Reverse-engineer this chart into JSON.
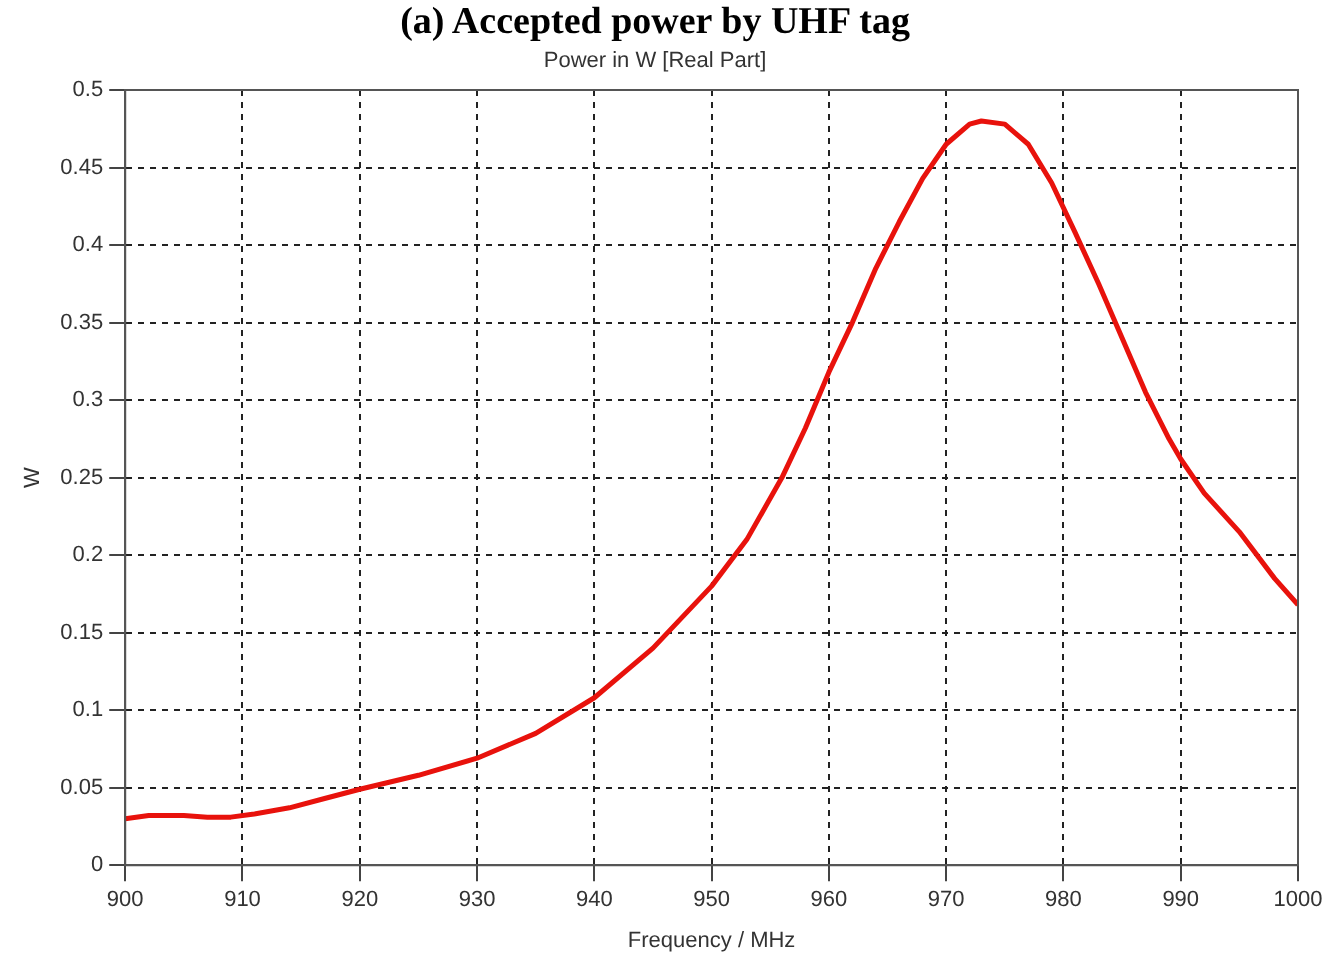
{
  "chart_data": {
    "type": "line",
    "title": "(a) Accepted power by UHF tag",
    "subtitle": "Power in W [Real Part]",
    "xlabel": "Frequency / MHz",
    "ylabel": "W",
    "x": [
      900,
      902,
      905,
      907,
      909,
      911,
      914,
      917,
      920,
      925,
      930,
      935,
      940,
      945,
      950,
      953,
      956,
      958,
      960,
      962,
      964,
      966,
      968,
      970,
      972,
      973,
      975,
      977,
      979,
      981,
      983,
      985,
      987,
      989,
      990,
      992,
      995,
      998,
      1000
    ],
    "series": [
      {
        "color": "#e8120c",
        "values": [
          0.03,
          0.032,
          0.032,
          0.031,
          0.031,
          0.033,
          0.037,
          0.043,
          0.049,
          0.058,
          0.069,
          0.085,
          0.108,
          0.14,
          0.18,
          0.21,
          0.25,
          0.282,
          0.318,
          0.35,
          0.385,
          0.415,
          0.443,
          0.465,
          0.478,
          0.48,
          0.478,
          0.465,
          0.44,
          0.408,
          0.375,
          0.34,
          0.305,
          0.275,
          0.262,
          0.24,
          0.215,
          0.185,
          0.168
        ]
      }
    ],
    "xlim": [
      900,
      1000
    ],
    "xticks": [
      900,
      910,
      920,
      930,
      940,
      950,
      960,
      970,
      980,
      990,
      1000
    ],
    "ylim": [
      0,
      0.5
    ],
    "yticks": [
      0,
      0.05,
      0.1,
      0.15,
      0.2,
      0.25,
      0.3,
      0.35,
      0.4,
      0.45,
      0.5
    ],
    "grid": true,
    "legend": false,
    "marker": "none",
    "line_style": "solid"
  }
}
